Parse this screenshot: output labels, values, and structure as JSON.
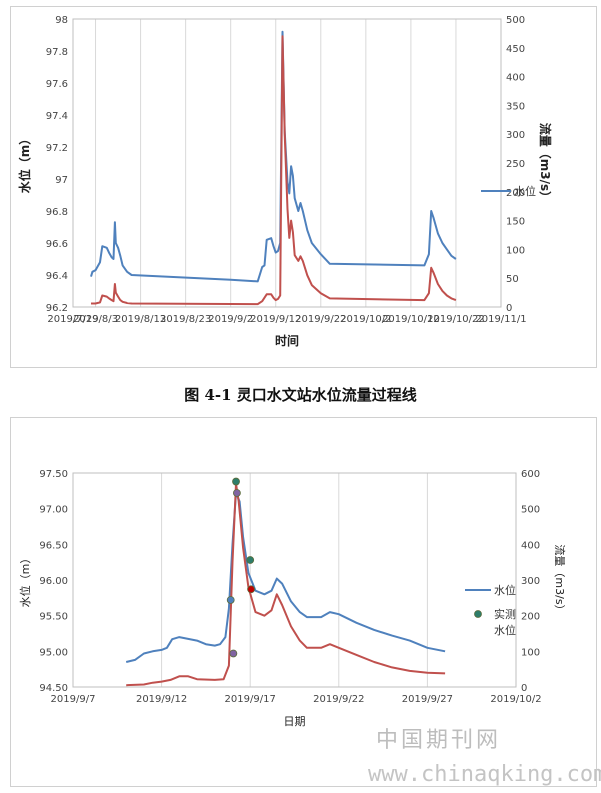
{
  "caption": "图 4-1  灵口水文站水位流量过程线",
  "watermark": {
    "cn": "中国期刊网",
    "url": "www.chinaqking.com"
  },
  "chart_data": [
    {
      "type": "line",
      "xlabel": "时间",
      "ylabel": "水位（m）",
      "ylabel_right": "流量（m3/s）",
      "x_ticks": [
        "2019/7/29",
        "2019/8/3",
        "2019/8/13",
        "2019/8/23",
        "2019/9/2",
        "2019/9/12",
        "2019/9/22",
        "2019/10/2",
        "2019/10/12",
        "2019/10/22",
        "2019/11/1"
      ],
      "x_tick_days": [
        0,
        5,
        15,
        25,
        35,
        45,
        55,
        65,
        75,
        85,
        95
      ],
      "ylim": [
        96.2,
        98
      ],
      "y_ticks": [
        "96.2",
        "96.4",
        "96.6",
        "96.8",
        "97",
        "97.2",
        "97.4",
        "97.6",
        "97.8",
        "98"
      ],
      "ylim_right": [
        0,
        500
      ],
      "y_ticks_right": [
        "0",
        "50",
        "100",
        "150",
        "200",
        "250",
        "300",
        "350",
        "400",
        "450",
        "500"
      ],
      "grid": "vertical",
      "legend": {
        "label": "水位",
        "placement": "right"
      },
      "series": [
        {
          "name": "水位",
          "axis": "left",
          "color": "#4f81bd",
          "points": [
            [
              4,
              96.39
            ],
            [
              4.3,
              96.42
            ],
            [
              5,
              96.43
            ],
            [
              6,
              96.48
            ],
            [
              6.5,
              96.58
            ],
            [
              7.5,
              96.57
            ],
            [
              8,
              96.54
            ],
            [
              8.6,
              96.51
            ],
            [
              9,
              96.5
            ],
            [
              9.3,
              96.73
            ],
            [
              9.5,
              96.6
            ],
            [
              10,
              96.57
            ],
            [
              10.5,
              96.52
            ],
            [
              11,
              96.46
            ],
            [
              12,
              96.42
            ],
            [
              13,
              96.4
            ],
            [
              35,
              96.37
            ],
            [
              41,
              96.36
            ],
            [
              42,
              96.45
            ],
            [
              42.5,
              96.46
            ],
            [
              43,
              96.62
            ],
            [
              44,
              96.63
            ],
            [
              44.5,
              96.58
            ],
            [
              45,
              96.54
            ],
            [
              45.5,
              96.55
            ],
            [
              46,
              96.6
            ],
            [
              46.5,
              97.92
            ],
            [
              47,
              97.3
            ],
            [
              47.6,
              96.98
            ],
            [
              48,
              96.91
            ],
            [
              48.4,
              97.08
            ],
            [
              48.8,
              97.02
            ],
            [
              49.2,
              96.88
            ],
            [
              50,
              96.8
            ],
            [
              50.5,
              96.85
            ],
            [
              51,
              96.8
            ],
            [
              52,
              96.68
            ],
            [
              53,
              96.6
            ],
            [
              55,
              96.53
            ],
            [
              57,
              96.47
            ],
            [
              78,
              96.46
            ],
            [
              79,
              96.53
            ],
            [
              79.5,
              96.8
            ],
            [
              80,
              96.76
            ],
            [
              81,
              96.66
            ],
            [
              82,
              96.6
            ],
            [
              83,
              96.56
            ],
            [
              84,
              96.52
            ],
            [
              85,
              96.5
            ]
          ]
        },
        {
          "name": "流量",
          "axis": "right",
          "color": "#c0504d",
          "points": [
            [
              4,
              6
            ],
            [
              5,
              6
            ],
            [
              6,
              8
            ],
            [
              6.5,
              20
            ],
            [
              7.5,
              18
            ],
            [
              8,
              15
            ],
            [
              8.6,
              12
            ],
            [
              9,
              10
            ],
            [
              9.3,
              40
            ],
            [
              9.5,
              25
            ],
            [
              10,
              18
            ],
            [
              10.5,
              12
            ],
            [
              11,
              9
            ],
            [
              12,
              7
            ],
            [
              13,
              6
            ],
            [
              41,
              5
            ],
            [
              42,
              10
            ],
            [
              43,
              22
            ],
            [
              44,
              22
            ],
            [
              44.5,
              16
            ],
            [
              45,
              12
            ],
            [
              45.5,
              14
            ],
            [
              46,
              20
            ],
            [
              46.5,
              470
            ],
            [
              47,
              300
            ],
            [
              47.6,
              170
            ],
            [
              48,
              120
            ],
            [
              48.4,
              150
            ],
            [
              48.8,
              130
            ],
            [
              49.2,
              90
            ],
            [
              50,
              80
            ],
            [
              50.5,
              88
            ],
            [
              51,
              80
            ],
            [
              52,
              55
            ],
            [
              53,
              38
            ],
            [
              55,
              24
            ],
            [
              57,
              15
            ],
            [
              78,
              12
            ],
            [
              79,
              24
            ],
            [
              79.5,
              68
            ],
            [
              80,
              60
            ],
            [
              81,
              40
            ],
            [
              82,
              28
            ],
            [
              83,
              20
            ],
            [
              84,
              15
            ],
            [
              85,
              12
            ]
          ]
        }
      ]
    },
    {
      "type": "line",
      "xlabel": "日期",
      "ylabel": "水位（m）",
      "ylabel_right": "流量（m3/s）",
      "x_ticks": [
        "2019/9/7",
        "2019/9/12",
        "2019/9/17",
        "2019/9/22",
        "2019/9/27",
        "2019/10/2"
      ],
      "x_tick_days": [
        0,
        5,
        10,
        15,
        20,
        25
      ],
      "ylim": [
        94.5,
        97.5
      ],
      "y_ticks": [
        "94.50",
        "95.00",
        "95.50",
        "96.00",
        "96.50",
        "97.00",
        "97.50"
      ],
      "ylim_right": [
        0,
        600
      ],
      "y_ticks_right": [
        "0",
        "100",
        "200",
        "300",
        "400",
        "500",
        "600"
      ],
      "grid": "vertical",
      "legend": [
        {
          "label": "水位",
          "placement": "right",
          "style": "line"
        },
        {
          "label": "实测水位",
          "placement": "right",
          "style": "marker"
        }
      ],
      "series": [
        {
          "name": "水位",
          "axis": "left",
          "color": "#4f81bd",
          "points": [
            [
              3,
              94.85
            ],
            [
              3.5,
              94.88
            ],
            [
              4,
              94.97
            ],
            [
              4.5,
              95.0
            ],
            [
              5,
              95.02
            ],
            [
              5.3,
              95.05
            ],
            [
              5.6,
              95.17
            ],
            [
              6,
              95.2
            ],
            [
              7,
              95.15
            ],
            [
              7.5,
              95.1
            ],
            [
              8,
              95.08
            ],
            [
              8.3,
              95.1
            ],
            [
              8.6,
              95.2
            ],
            [
              8.8,
              95.6
            ],
            [
              9,
              96.5
            ],
            [
              9.2,
              97.22
            ],
            [
              9.4,
              97.1
            ],
            [
              9.6,
              96.6
            ],
            [
              9.9,
              96.1
            ],
            [
              10.3,
              95.85
            ],
            [
              10.8,
              95.8
            ],
            [
              11.2,
              95.85
            ],
            [
              11.5,
              96.02
            ],
            [
              11.8,
              95.95
            ],
            [
              12.3,
              95.7
            ],
            [
              12.8,
              95.55
            ],
            [
              13.2,
              95.48
            ],
            [
              14,
              95.48
            ],
            [
              14.5,
              95.55
            ],
            [
              15,
              95.52
            ],
            [
              16,
              95.4
            ],
            [
              17,
              95.3
            ],
            [
              18,
              95.22
            ],
            [
              19,
              95.15
            ],
            [
              20,
              95.05
            ],
            [
              21,
              95.0
            ]
          ]
        },
        {
          "name": "流量",
          "axis": "right",
          "color": "#c0504d",
          "points": [
            [
              3,
              5
            ],
            [
              4,
              7
            ],
            [
              4.5,
              12
            ],
            [
              5,
              15
            ],
            [
              5.5,
              20
            ],
            [
              6,
              30
            ],
            [
              6.5,
              30
            ],
            [
              7,
              22
            ],
            [
              8,
              20
            ],
            [
              8.5,
              22
            ],
            [
              8.8,
              60
            ],
            [
              9,
              350
            ],
            [
              9.2,
              570
            ],
            [
              9.35,
              520
            ],
            [
              9.6,
              390
            ],
            [
              9.9,
              280
            ],
            [
              10.3,
              210
            ],
            [
              10.8,
              200
            ],
            [
              11.2,
              215
            ],
            [
              11.5,
              260
            ],
            [
              11.8,
              230
            ],
            [
              12.3,
              170
            ],
            [
              12.8,
              130
            ],
            [
              13.2,
              110
            ],
            [
              14,
              110
            ],
            [
              14.5,
              120
            ],
            [
              15,
              110
            ],
            [
              16,
              90
            ],
            [
              17,
              70
            ],
            [
              18,
              55
            ],
            [
              19,
              45
            ],
            [
              20,
              40
            ],
            [
              21,
              38
            ]
          ]
        }
      ],
      "observed": [
        {
          "day": 8.9,
          "value": 95.72,
          "color": "#4f81bd"
        },
        {
          "day": 9.05,
          "value": 94.97,
          "color": "#8064a2"
        },
        {
          "day": 9.2,
          "value": 97.38,
          "color": "#2e7d6a"
        },
        {
          "day": 9.25,
          "value": 97.22,
          "color": "#8064a2"
        },
        {
          "day": 10.0,
          "value": 96.28,
          "color": "#2e7d6a"
        },
        {
          "day": 10.05,
          "value": 95.87,
          "color": "#c00000"
        }
      ]
    }
  ]
}
